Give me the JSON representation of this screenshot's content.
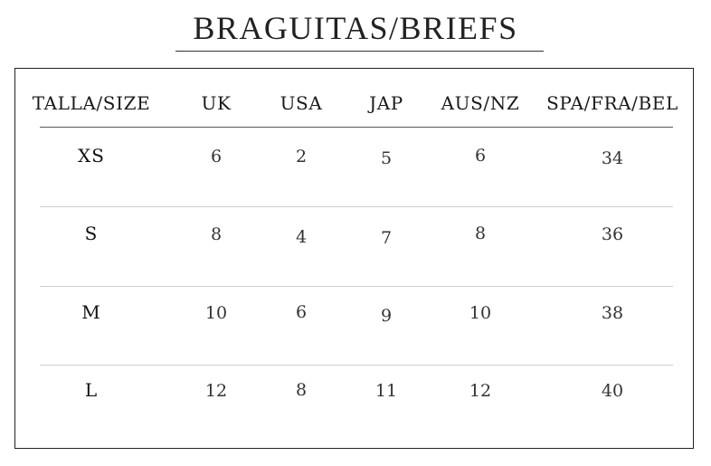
{
  "title": "BRAGUITAS/BRIEFS",
  "table": {
    "columns": [
      "TALLA/SIZE",
      "UK",
      "USA",
      "JAP",
      "AUS/NZ",
      "SPA/FRA/BEL"
    ],
    "rows": [
      {
        "size": "XS",
        "uk": "6",
        "usa": "2",
        "jap": "5",
        "aus_nz": "6",
        "spa_fra_bel": "34"
      },
      {
        "size": "S",
        "uk": "8",
        "usa": "4",
        "jap": "7",
        "aus_nz": "8",
        "spa_fra_bel": "36"
      },
      {
        "size": "M",
        "uk": "10",
        "usa": "6",
        "jap": "9",
        "aus_nz": "10",
        "spa_fra_bel": "38"
      },
      {
        "size": "L",
        "uk": "12",
        "usa": "8",
        "jap": "11",
        "aus_nz": "12",
        "spa_fra_bel": "40"
      }
    ]
  }
}
